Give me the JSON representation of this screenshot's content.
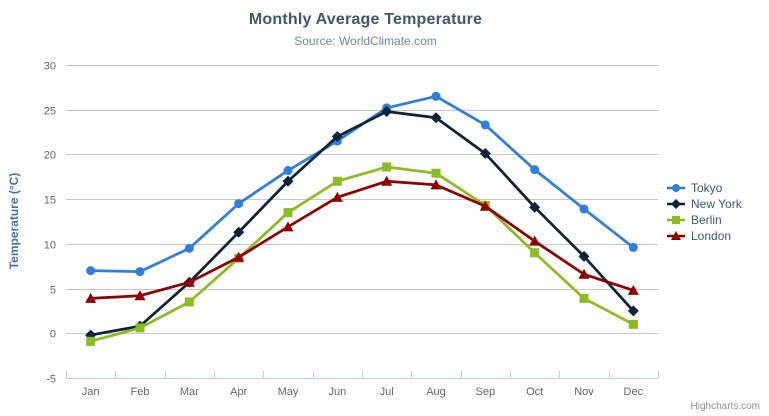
{
  "chart_data": {
    "type": "line",
    "title": "Monthly Average Temperature",
    "subtitle": "Source: WorldClimate.com",
    "categories": [
      "Jan",
      "Feb",
      "Mar",
      "Apr",
      "May",
      "Jun",
      "Jul",
      "Aug",
      "Sep",
      "Oct",
      "Nov",
      "Dec"
    ],
    "series": [
      {
        "name": "Tokyo",
        "color": "#2f7ed8",
        "marker": "circle",
        "values": [
          7.0,
          6.9,
          9.5,
          14.5,
          18.2,
          21.5,
          25.2,
          26.5,
          23.3,
          18.3,
          13.9,
          9.6
        ]
      },
      {
        "name": "New York",
        "color": "#0d233a",
        "marker": "diamond",
        "values": [
          -0.2,
          0.8,
          5.7,
          11.3,
          17.0,
          22.0,
          24.8,
          24.1,
          20.1,
          14.1,
          8.6,
          2.5
        ]
      },
      {
        "name": "Berlin",
        "color": "#8bbc21",
        "marker": "square",
        "values": [
          -0.9,
          0.6,
          3.5,
          8.4,
          13.5,
          17.0,
          18.6,
          17.9,
          14.3,
          9.0,
          3.9,
          1.0
        ]
      },
      {
        "name": "London",
        "color": "#910000",
        "marker": "triangle",
        "values": [
          3.9,
          4.2,
          5.7,
          8.5,
          11.9,
          15.2,
          17.0,
          16.6,
          14.2,
          10.3,
          6.6,
          4.8
        ]
      }
    ],
    "xlabel": "",
    "ylabel": "Temperature (°C)",
    "ylim": [
      -5,
      30
    ],
    "ytick_step": 5,
    "yticks": [
      -5,
      0,
      5,
      10,
      15,
      20,
      25,
      30
    ],
    "grid": true,
    "legend_position": "right"
  },
  "credits": {
    "label": "Highcharts.com"
  },
  "exporting": {
    "icon": "hamburger-icon"
  },
  "colors": {
    "grid": "#C8C8C8",
    "axis_line": "#C0D0E0",
    "tick_label": "#666666",
    "title": "#3E576F",
    "subtitle": "#6D869F",
    "axis_title": "#4572A7",
    "legend_text": "#3E576F",
    "credits": "#909090",
    "menu_icon": "#666666",
    "background": "#ffffff"
  }
}
